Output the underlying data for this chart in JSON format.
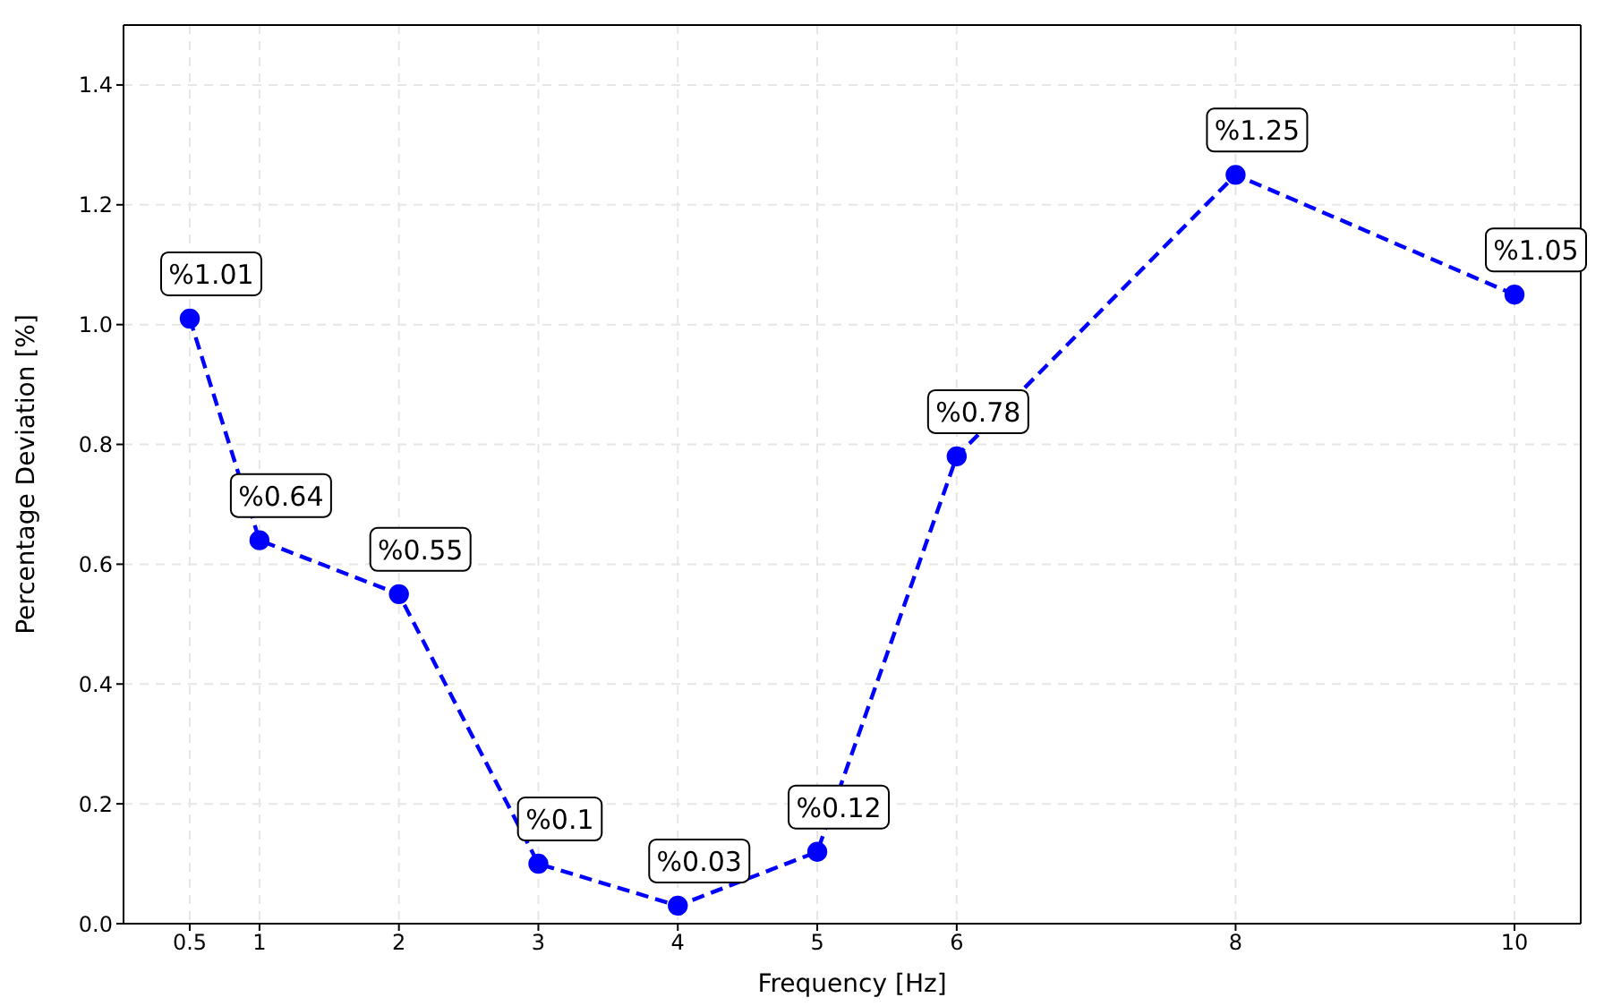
{
  "chart_data": {
    "type": "line",
    "xlabel": "Frequency [Hz]",
    "ylabel": "Percentage Deviation [%]",
    "x": [
      0.5,
      1,
      2,
      3,
      4,
      5,
      6,
      8,
      10
    ],
    "series": [
      {
        "color": "#0000ff",
        "values": [
          1.01,
          0.64,
          0.55,
          0.1,
          0.03,
          0.12,
          0.78,
          1.25,
          1.05
        ],
        "value_labels": [
          "%1.01",
          "%0.64",
          "%0.55",
          "%0.1",
          "%0.03",
          "%0.12",
          "%0.78",
          "%1.25",
          "%1.05"
        ]
      }
    ],
    "xlim": [
      0.025,
      10.475
    ],
    "xticks": [
      0.5,
      1,
      2,
      3,
      4,
      5,
      6,
      8,
      10
    ],
    "ylim": [
      0,
      1.5
    ],
    "yticks": [
      {
        "value": 0,
        "label": "0.0"
      },
      {
        "value": 0.2,
        "label": "0.2"
      },
      {
        "value": 0.4,
        "label": "0.4"
      },
      {
        "value": 0.6,
        "label": "0.6"
      },
      {
        "value": 0.8,
        "label": "0.8"
      },
      {
        "value": 1.0,
        "label": "1.0"
      },
      {
        "value": 1.2,
        "label": "1.2"
      },
      {
        "value": 1.4,
        "label": "1.4"
      }
    ],
    "grid": true,
    "marker": "circle",
    "line_style": "dashed",
    "legend": false
  }
}
